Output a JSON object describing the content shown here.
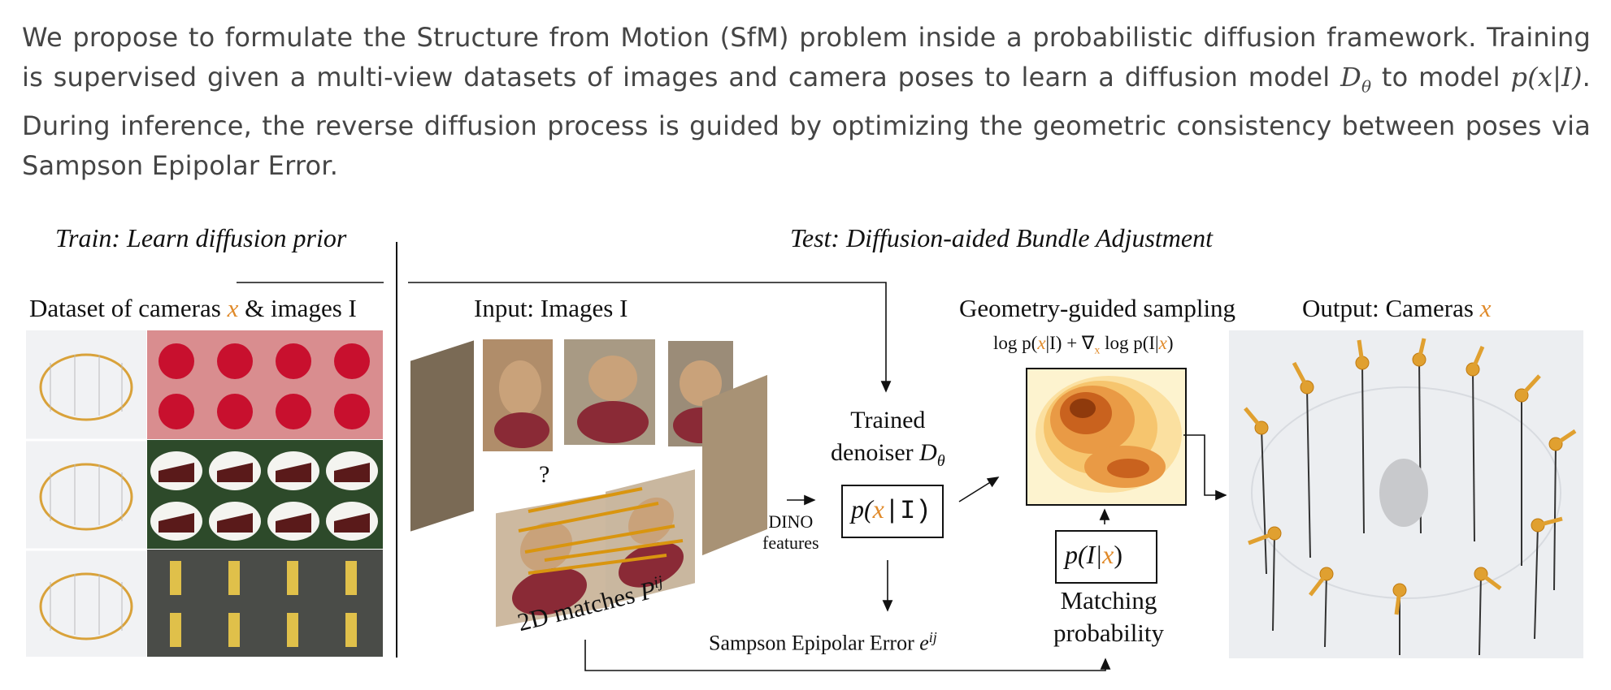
{
  "intro": {
    "p1": "We propose to formulate the Structure from Motion (SfM) problem inside a probabilistic diffusion framework. Training is supervised given a multi-view datasets of images and camera poses to learn a diffusion model ",
    "m1": "D",
    "m1sub": "θ",
    "p2": " to model ",
    "m2": "p(x|I)",
    "p3": ". During inference, the reverse diffusion process is guided by optimizing the geometric consistency between poses via Sampson Epipolar Error."
  },
  "figure": {
    "train_title": "Train: Learn diffusion prior",
    "test_title": "Test: Diffusion-aided Bundle Adjustment",
    "dataset_label_a": "Dataset of cameras ",
    "dataset_label_x": "x",
    "dataset_label_b": " & images I",
    "input_label": "Input: Images I",
    "question_mark": "?",
    "matches_label": "2D matches ",
    "matches_P": "P",
    "matches_sup": "ij",
    "dino_1": "DINO",
    "dino_2": "features",
    "denoiser_1": "Trained",
    "denoiser_2": "denoiser ",
    "denoiser_D": "D",
    "denoiser_sub": "θ",
    "box_prior": {
      "p": "p(",
      "x": "x",
      "rest": "|I)"
    },
    "sampson_label": "Sampson Epipolar Error  ",
    "sampson_e": "e",
    "sampson_sup": "ij",
    "geo_label": "Geometry-guided sampling",
    "geo_formula_a": "log p(",
    "geo_formula_x": "x",
    "geo_formula_b": "|I) + ∇",
    "geo_formula_sub": "x",
    "geo_formula_c": " log p(I|",
    "geo_formula_x2": "x",
    "geo_formula_d": ")",
    "box_match": {
      "p": "p(I|",
      "x": "x",
      "rest": ")"
    },
    "matching_1": "Matching",
    "matching_2": "probability",
    "output_label": "Output: Cameras ",
    "output_x": "x"
  },
  "colors": {
    "text": "#454545",
    "accent": "#e08a2a",
    "heat_low": "#fdf3cf",
    "heat_high": "#8f3a0c"
  }
}
